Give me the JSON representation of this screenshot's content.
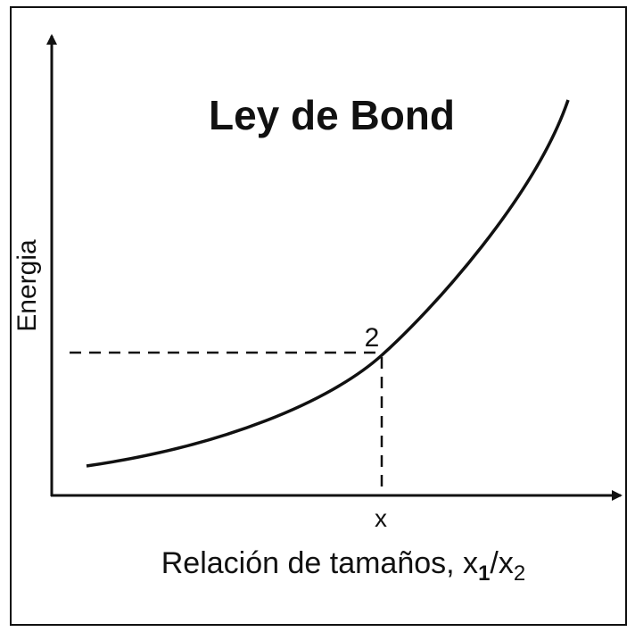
{
  "title": "Ley de Bond",
  "y_axis_label": "Energia",
  "x_axis_label": {
    "parts": [
      "Relación de tamaños, x",
      "1",
      "/x",
      "2"
    ]
  },
  "point_label": "2",
  "x_marker_label": "x"
}
